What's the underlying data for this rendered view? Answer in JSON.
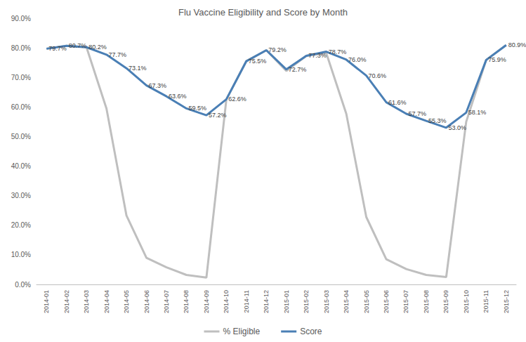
{
  "chart_data": {
    "type": "line",
    "title": "Flu Vaccine Eligibility and Score by Month",
    "categories": [
      "2014-01",
      "2014-02",
      "2014-03",
      "2014-04",
      "2014-05",
      "2014-06",
      "2014-07",
      "2014-08",
      "2014-09",
      "2014-10",
      "2014-11",
      "2014-12",
      "2015-01",
      "2015-02",
      "2015-03",
      "2015-04",
      "2015-05",
      "2015-06",
      "2015-07",
      "2015-08",
      "2015-09",
      "2015-10",
      "2015-11",
      "2015-12"
    ],
    "series": [
      {
        "name": "% Eligible",
        "color": "#bfbfbf",
        "marker": "none",
        "data_labels": false,
        "values": [
          79.7,
          80.7,
          80.2,
          59.5,
          23.3,
          9.0,
          5.8,
          3.2,
          2.3,
          62.6,
          75.5,
          79.2,
          72.2,
          77.3,
          78.2,
          57.7,
          22.8,
          8.5,
          5.2,
          3.2,
          2.5,
          55.0,
          75.9,
          80.9
        ]
      },
      {
        "name": "Score",
        "color": "#4a7fb5",
        "marker": "none",
        "data_labels": true,
        "values": [
          79.7,
          80.7,
          80.2,
          77.7,
          73.1,
          67.3,
          63.6,
          59.5,
          57.2,
          62.6,
          75.5,
          79.2,
          72.7,
          77.3,
          78.7,
          76.0,
          70.6,
          61.6,
          57.7,
          55.3,
          53.0,
          58.1,
          75.9,
          80.9
        ],
        "value_labels": [
          "79.7%",
          "80.7%",
          "80.2%",
          "77.7%",
          "73.1%",
          "67.3%",
          "63.6%",
          "59.5%",
          "57.2%",
          "62.6%",
          "75.5%",
          "79.2%",
          "72.7%",
          "77.3%",
          "78.7%",
          "76.0%",
          "70.6%",
          "61.6%",
          "57.7%",
          "55.3%",
          "53.0%",
          "58.1%",
          "75.9%",
          "80.9%"
        ]
      }
    ],
    "ylim": [
      0,
      90
    ],
    "yticks": [
      {
        "value": 0,
        "label": "0.0%"
      },
      {
        "value": 10,
        "label": "10.0%"
      },
      {
        "value": 20,
        "label": "20.0%"
      },
      {
        "value": 30,
        "label": "30.0%"
      },
      {
        "value": 40,
        "label": "40.0%"
      },
      {
        "value": 50,
        "label": "50.0%"
      },
      {
        "value": 60,
        "label": "60.0%"
      },
      {
        "value": 70,
        "label": "70.0%"
      },
      {
        "value": 80,
        "label": "80.0%"
      },
      {
        "value": 90,
        "label": "90.0%"
      }
    ],
    "grid": false,
    "legend": "bottom"
  }
}
